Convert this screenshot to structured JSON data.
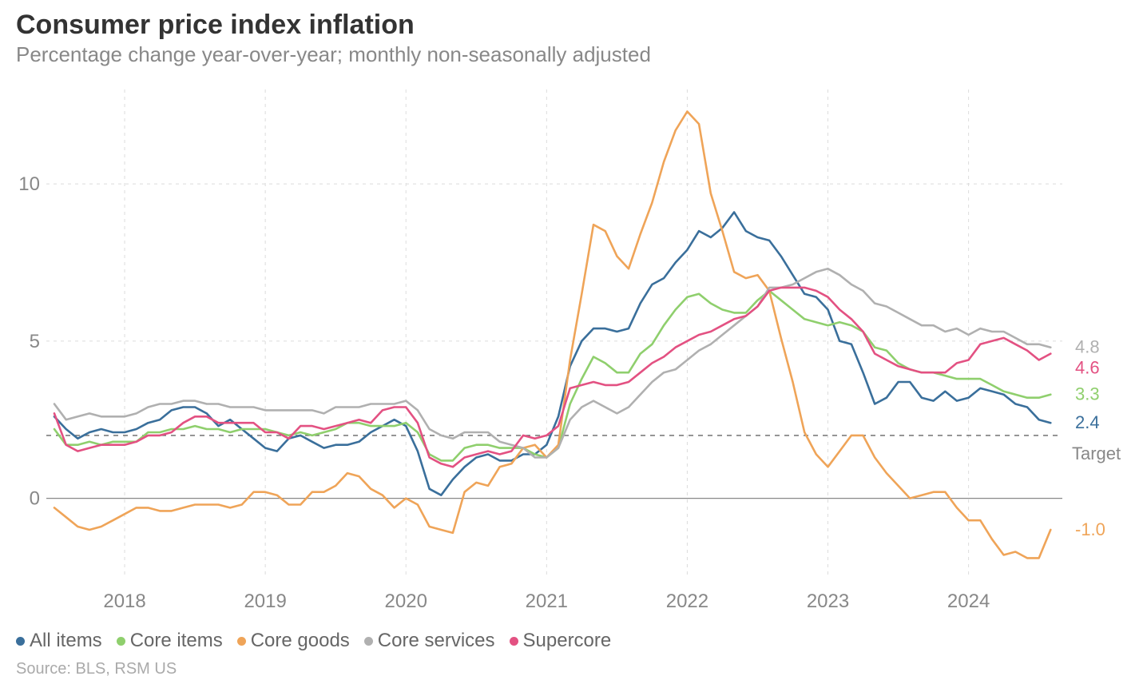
{
  "title": "Consumer price index inflation",
  "subtitle": "Percentage change year-over-year; monthly non-seasonally adjusted",
  "source": "Source: BLS, RSM US",
  "chart": {
    "type": "line",
    "background_color": "#ffffff",
    "grid_color": "#dcdcdc",
    "axis_label_color": "#888888",
    "target_line": {
      "value": 2.0,
      "label": "Target",
      "color": "#666666",
      "dash": "6,6"
    },
    "x": {
      "start_year": 2017,
      "start_month": 7,
      "end_year": 2024,
      "end_month": 9,
      "tick_years": [
        2018,
        2019,
        2020,
        2021,
        2022,
        2023,
        2024
      ]
    },
    "y": {
      "min": -2.5,
      "max": 13,
      "ticks": [
        0,
        5,
        10
      ]
    },
    "line_width": 2.6,
    "series": [
      {
        "name": "All items",
        "color": "#3a6f9b",
        "end_label": "2.4",
        "values": [
          2.6,
          2.2,
          1.9,
          2.1,
          2.2,
          2.1,
          2.1,
          2.2,
          2.4,
          2.5,
          2.8,
          2.9,
          2.9,
          2.7,
          2.3,
          2.5,
          2.2,
          1.9,
          1.6,
          1.5,
          1.9,
          2.0,
          1.8,
          1.6,
          1.7,
          1.7,
          1.8,
          2.1,
          2.3,
          2.5,
          2.3,
          1.5,
          0.3,
          0.1,
          0.6,
          1.0,
          1.3,
          1.4,
          1.2,
          1.2,
          1.4,
          1.4,
          1.7,
          2.6,
          4.2,
          5.0,
          5.4,
          5.4,
          5.3,
          5.4,
          6.2,
          6.8,
          7.0,
          7.5,
          7.9,
          8.5,
          8.3,
          8.6,
          9.1,
          8.5,
          8.3,
          8.2,
          7.7,
          7.1,
          6.5,
          6.4,
          6.0,
          5.0,
          4.9,
          4.0,
          3.0,
          3.2,
          3.7,
          3.7,
          3.2,
          3.1,
          3.4,
          3.1,
          3.2,
          3.5,
          3.4,
          3.3,
          3.0,
          2.9,
          2.5,
          2.4
        ]
      },
      {
        "name": "Core items",
        "color": "#8fcf6d",
        "end_label": "3.3",
        "values": [
          2.2,
          1.7,
          1.7,
          1.8,
          1.7,
          1.8,
          1.8,
          1.8,
          2.1,
          2.1,
          2.2,
          2.2,
          2.3,
          2.2,
          2.2,
          2.1,
          2.2,
          2.2,
          2.2,
          2.1,
          2.0,
          2.1,
          2.0,
          2.1,
          2.2,
          2.4,
          2.4,
          2.3,
          2.3,
          2.3,
          2.4,
          2.1,
          1.4,
          1.2,
          1.2,
          1.6,
          1.7,
          1.7,
          1.6,
          1.6,
          1.6,
          1.4,
          1.3,
          1.6,
          3.0,
          3.8,
          4.5,
          4.3,
          4.0,
          4.0,
          4.6,
          4.9,
          5.5,
          6.0,
          6.4,
          6.5,
          6.2,
          6.0,
          5.9,
          5.9,
          6.3,
          6.6,
          6.3,
          6.0,
          5.7,
          5.6,
          5.5,
          5.6,
          5.5,
          5.3,
          4.8,
          4.7,
          4.3,
          4.1,
          4.0,
          4.0,
          3.9,
          3.8,
          3.8,
          3.8,
          3.6,
          3.4,
          3.3,
          3.2,
          3.2,
          3.3
        ]
      },
      {
        "name": "Core goods",
        "color": "#efa458",
        "end_label": "-1.0",
        "values": [
          -0.3,
          -0.6,
          -0.9,
          -1.0,
          -0.9,
          -0.7,
          -0.5,
          -0.3,
          -0.3,
          -0.4,
          -0.4,
          -0.3,
          -0.2,
          -0.2,
          -0.2,
          -0.3,
          -0.2,
          0.2,
          0.2,
          0.1,
          -0.2,
          -0.2,
          0.2,
          0.2,
          0.4,
          0.8,
          0.7,
          0.3,
          0.1,
          -0.3,
          0.0,
          -0.2,
          -0.9,
          -1.0,
          -1.1,
          0.2,
          0.5,
          0.4,
          1.0,
          1.1,
          1.6,
          1.7,
          1.3,
          1.7,
          4.4,
          6.5,
          8.7,
          8.5,
          7.7,
          7.3,
          8.4,
          9.4,
          10.7,
          11.7,
          12.3,
          11.9,
          9.7,
          8.5,
          7.2,
          7.0,
          7.1,
          6.6,
          5.1,
          3.7,
          2.1,
          1.4,
          1.0,
          1.5,
          2.0,
          2.0,
          1.3,
          0.8,
          0.4,
          0.0,
          0.1,
          0.2,
          0.2,
          -0.3,
          -0.7,
          -0.7,
          -1.3,
          -1.8,
          -1.7,
          -1.9,
          -1.9,
          -1.0
        ]
      },
      {
        "name": "Core services",
        "color": "#b0b0b0",
        "end_label": "4.8",
        "values": [
          3.0,
          2.5,
          2.6,
          2.7,
          2.6,
          2.6,
          2.6,
          2.7,
          2.9,
          3.0,
          3.0,
          3.1,
          3.1,
          3.0,
          3.0,
          2.9,
          2.9,
          2.9,
          2.8,
          2.8,
          2.8,
          2.8,
          2.8,
          2.7,
          2.9,
          2.9,
          2.9,
          3.0,
          3.0,
          3.0,
          3.1,
          2.8,
          2.2,
          2.0,
          1.9,
          2.1,
          2.1,
          2.1,
          1.8,
          1.7,
          1.6,
          1.3,
          1.3,
          1.6,
          2.5,
          2.9,
          3.1,
          2.9,
          2.7,
          2.9,
          3.3,
          3.7,
          4.0,
          4.1,
          4.4,
          4.7,
          4.9,
          5.2,
          5.5,
          5.8,
          6.1,
          6.7,
          6.7,
          6.8,
          7.0,
          7.2,
          7.3,
          7.1,
          6.8,
          6.6,
          6.2,
          6.1,
          5.9,
          5.7,
          5.5,
          5.5,
          5.3,
          5.4,
          5.2,
          5.4,
          5.3,
          5.3,
          5.1,
          4.9,
          4.9,
          4.8
        ]
      },
      {
        "name": "Supercore",
        "color": "#e35182",
        "end_label": "4.6",
        "values": [
          2.7,
          1.7,
          1.5,
          1.6,
          1.7,
          1.7,
          1.7,
          1.8,
          2.0,
          2.0,
          2.1,
          2.4,
          2.6,
          2.6,
          2.4,
          2.4,
          2.4,
          2.4,
          2.1,
          2.1,
          1.9,
          2.3,
          2.3,
          2.2,
          2.3,
          2.4,
          2.5,
          2.4,
          2.8,
          2.9,
          2.9,
          2.4,
          1.3,
          1.1,
          1.0,
          1.3,
          1.4,
          1.5,
          1.4,
          1.5,
          2.0,
          1.9,
          2.0,
          2.3,
          3.5,
          3.6,
          3.7,
          3.6,
          3.6,
          3.7,
          4.0,
          4.3,
          4.5,
          4.8,
          5.0,
          5.2,
          5.3,
          5.5,
          5.7,
          5.8,
          6.1,
          6.6,
          6.7,
          6.7,
          6.7,
          6.6,
          6.4,
          6.0,
          5.7,
          5.3,
          4.6,
          4.4,
          4.2,
          4.1,
          4.0,
          4.0,
          4.0,
          4.3,
          4.4,
          4.9,
          5.0,
          5.1,
          4.9,
          4.7,
          4.4,
          4.6
        ]
      }
    ],
    "end_label_fontsize": 22,
    "axis_fontsize": 24
  },
  "legend": {
    "items": [
      {
        "label": "All items",
        "color": "#3a6f9b"
      },
      {
        "label": "Core items",
        "color": "#8fcf6d"
      },
      {
        "label": "Core goods",
        "color": "#efa458"
      },
      {
        "label": "Core services",
        "color": "#b0b0b0"
      },
      {
        "label": "Supercore",
        "color": "#e35182"
      }
    ]
  }
}
